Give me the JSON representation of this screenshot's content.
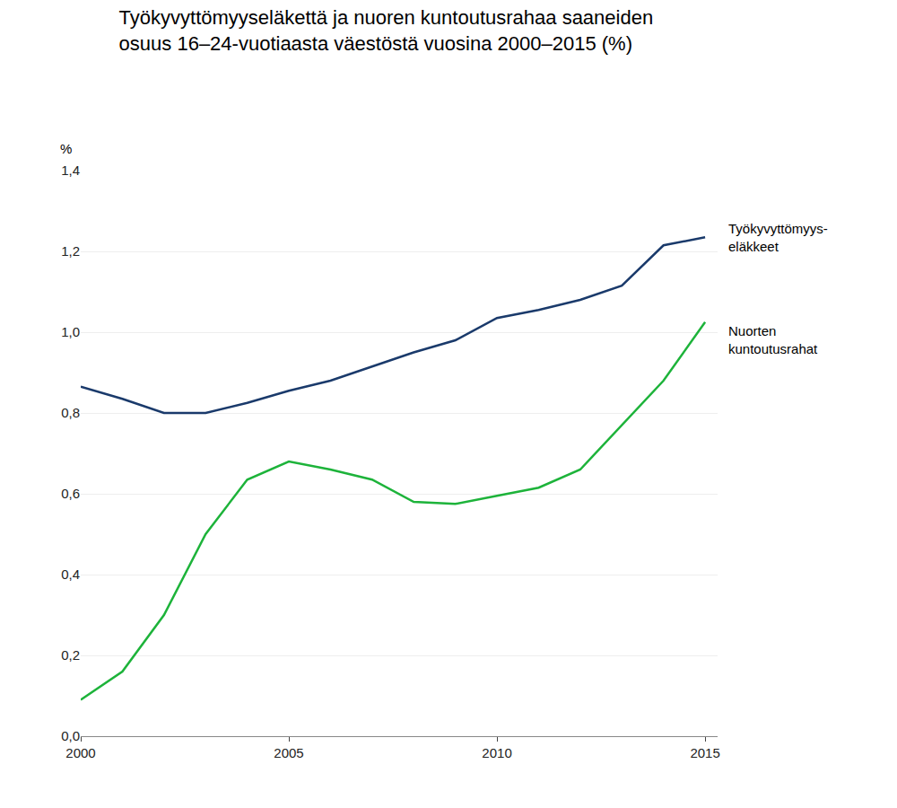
{
  "chart_data": {
    "type": "line",
    "title": "Työkyvyttömyyseläkettä ja nuoren kuntoutusrahaa saaneiden\nosuus 16–24-vuotiaasta väestöstä vuosina 2000–2015 (%)",
    "y_label": "%",
    "x": [
      2000,
      2001,
      2002,
      2003,
      2004,
      2005,
      2006,
      2007,
      2008,
      2009,
      2010,
      2011,
      2012,
      2013,
      2014,
      2015
    ],
    "series": [
      {
        "name": "Työkyvyttömyys-\neläkkeet",
        "color": "#1a3a6b",
        "values": [
          0.865,
          0.835,
          0.8,
          0.8,
          0.825,
          0.855,
          0.88,
          0.915,
          0.95,
          0.98,
          1.035,
          1.055,
          1.08,
          1.115,
          1.215,
          1.235
        ]
      },
      {
        "name": "Nuorten\nkuntoutusrahat",
        "color": "#1db33a",
        "values": [
          0.09,
          0.16,
          0.3,
          0.5,
          0.635,
          0.68,
          0.66,
          0.635,
          0.58,
          0.575,
          0.595,
          0.615,
          0.66,
          0.77,
          0.88,
          1.025
        ]
      }
    ],
    "xlim": [
      2000,
      2015.3
    ],
    "xticks": [
      2000,
      2005,
      2010,
      2015
    ],
    "ylim": [
      0.0,
      1.4
    ],
    "yticks": [
      {
        "value": 0.0,
        "label": "0,0"
      },
      {
        "value": 0.2,
        "label": "0,2"
      },
      {
        "value": 0.4,
        "label": "0,4"
      },
      {
        "value": 0.6,
        "label": "0,6"
      },
      {
        "value": 0.8,
        "label": "0,8"
      },
      {
        "value": 1.0,
        "label": "1,0"
      },
      {
        "value": 1.2,
        "label": "1,2"
      },
      {
        "value": 1.4,
        "label": "1,4"
      }
    ],
    "grid": true
  }
}
